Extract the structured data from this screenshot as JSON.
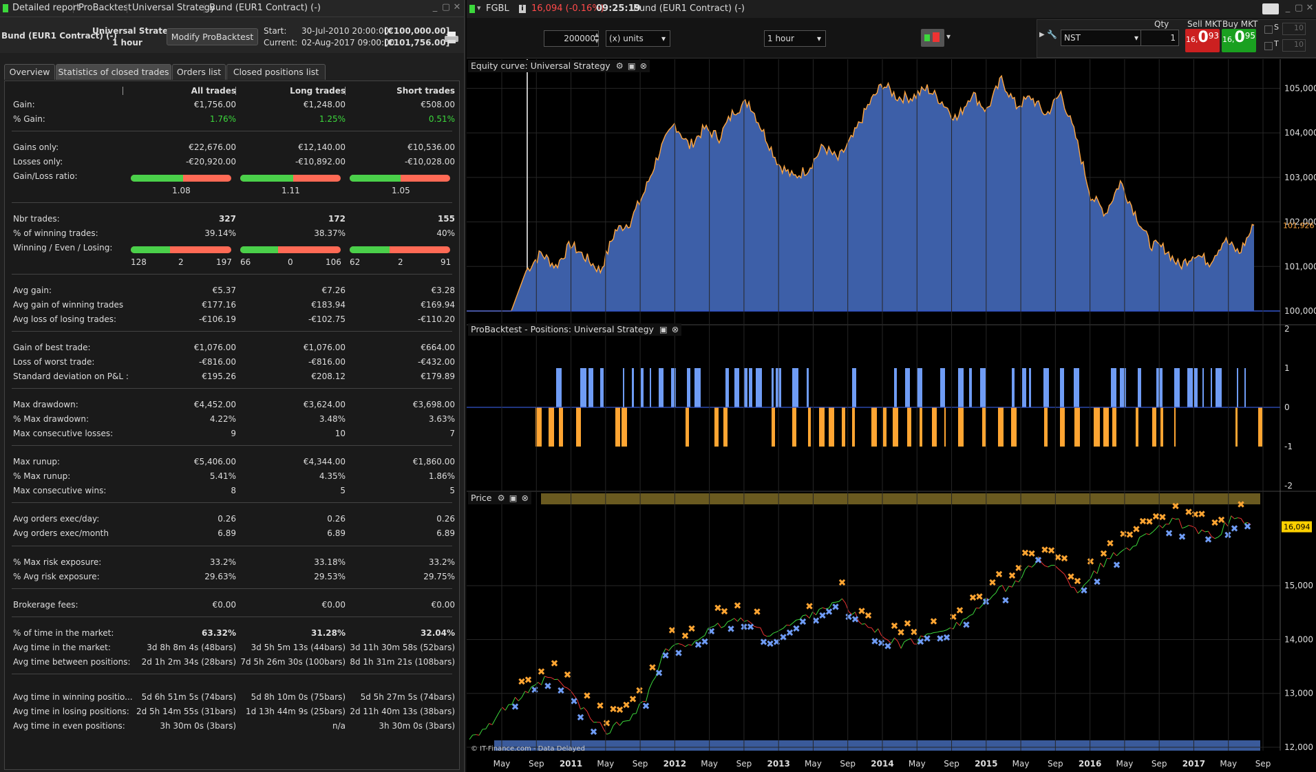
{
  "left_window": {
    "title": "Detailed report",
    "breadcrumb": [
      "ProBacktest",
      "Universal Strategy",
      "Bund (EUR1 Contract) (-)"
    ],
    "instrument": "Bund (EUR1 Contract) (-)",
    "strategy": "Universal Strategy",
    "timeframe": "1 hour",
    "modify_button": "Modify ProBacktest",
    "start_label": "Start:",
    "start_value": "30-Jul-2010 20:00:00",
    "start_capital": "[€100,000.00]",
    "current_label": "Current:",
    "current_value": "02-Aug-2017 09:00:00",
    "current_capital": "[€101,756.00]"
  },
  "tabs": [
    "Overview",
    "Statistics of closed trades",
    "Orders list",
    "Closed positions list"
  ],
  "columns": [
    "All trades",
    "Long trades",
    "Short trades"
  ],
  "stats": {
    "gain": [
      "Gain:",
      "€1,756.00",
      "€1,248.00",
      "€508.00"
    ],
    "pct_gain": [
      "% Gain:",
      "1.76%",
      "1.25%",
      "0.51%"
    ],
    "gains_only": [
      "Gains only:",
      "€22,676.00",
      "€12,140.00",
      "€10,536.00"
    ],
    "losses_only": [
      "Losses only:",
      "-€20,920.00",
      "-€10,892.00",
      "-€10,028.00"
    ],
    "gl_ratio_label": "Gain/Loss ratio:",
    "gl_ratio": [
      "1.08",
      "1.11",
      "1.05"
    ],
    "nbr_trades": [
      "Nbr trades:",
      "327",
      "172",
      "155"
    ],
    "pct_winning": [
      "% of winning trades:",
      "39.14%",
      "38.37%",
      "40%"
    ],
    "wel_label": "Winning / Even / Losing:",
    "wel": [
      [
        "128",
        "2",
        "197"
      ],
      [
        "66",
        "0",
        "106"
      ],
      [
        "62",
        "2",
        "91"
      ]
    ],
    "avg_gain": [
      "Avg gain:",
      "€5.37",
      "€7.26",
      "€3.28"
    ],
    "avg_gain_win": [
      "Avg gain of winning trades",
      "€177.16",
      "€183.94",
      "€169.94"
    ],
    "avg_loss_los": [
      "Avg loss of losing trades:",
      "-€106.19",
      "-€102.75",
      "-€110.20"
    ],
    "best_trade": [
      "Gain of best trade:",
      "€1,076.00",
      "€1,076.00",
      "€664.00"
    ],
    "worst_trade": [
      "Loss of worst trade:",
      "-€816.00",
      "-€816.00",
      "-€432.00"
    ],
    "std_dev": [
      "Standard deviation on P&L :",
      "€195.26",
      "€208.12",
      "€179.89"
    ],
    "max_dd": [
      "Max drawdown:",
      "€4,452.00",
      "€3,624.00",
      "€3,698.00"
    ],
    "pct_max_dd": [
      "% Max drawdown:",
      "4.22%",
      "3.48%",
      "3.63%"
    ],
    "max_consec_losses": [
      "Max consecutive losses:",
      "9",
      "10",
      "7"
    ],
    "max_runup": [
      "Max runup:",
      "€5,406.00",
      "€4,344.00",
      "€1,860.00"
    ],
    "pct_max_runup": [
      "% Max runup:",
      "5.41%",
      "4.35%",
      "1.86%"
    ],
    "max_consec_wins": [
      "Max consecutive wins:",
      "8",
      "5",
      "5"
    ],
    "orders_day": [
      "Avg orders exec/day:",
      "0.26",
      "0.26",
      "0.26"
    ],
    "orders_month": [
      "Avg orders exec/month",
      "6.89",
      "6.89",
      "6.89"
    ],
    "max_risk": [
      "% Max risk exposure:",
      "33.2%",
      "33.18%",
      "33.2%"
    ],
    "avg_risk": [
      "% Avg risk exposure:",
      "29.63%",
      "29.53%",
      "29.75%"
    ],
    "fees": [
      "Brokerage fees:",
      "€0.00",
      "€0.00",
      "€0.00"
    ],
    "time_market_pct": [
      "% of time in the market:",
      "63.32%",
      "31.28%",
      "32.04%"
    ],
    "avg_time_market": [
      "Avg time in the market:",
      "3d 8h 8m 4s (48bars)",
      "3d 5h 5m 13s (44bars)",
      "3d 11h 30m 58s (52bars)"
    ],
    "avg_time_between": [
      "Avg time between positions:",
      "2d 1h 2m 34s (28bars)",
      "7d 5h 26m 30s (100bars)",
      "8d 1h 31m 21s (108bars)"
    ],
    "avg_time_win": [
      "Avg time in winning positio...",
      "5d 6h 51m 5s (74bars)",
      "5d 8h 10m 0s (75bars)",
      "5d 5h 27m 5s (74bars)"
    ],
    "avg_time_los": [
      "Avg time in losing positions:",
      "2d 5h 14m 55s (31bars)",
      "1d 13h 44m 9s (25bars)",
      "2d 11h 40m 13s (38bars)"
    ],
    "avg_time_even": [
      "Avg time in even positions:",
      "3h 30m 0s (3bars)",
      "n/a",
      "3h 30m 0s (3bars)"
    ]
  },
  "right_window": {
    "ticker": "FGBL",
    "price_change": "16,094 (-0.16%)",
    "time": "09:25:19",
    "instrument": "Bund (EUR1 Contract) (-)",
    "units_value": "200000",
    "units_label": "(x) units",
    "timeframe": "1 hour",
    "qty_label": "Qty",
    "qty_value": "1",
    "account": "NST",
    "sell_label": "Sell MKT",
    "sell_price_small": "16,",
    "sell_price_big": "0",
    "sell_price_sup": "93",
    "buy_label": "Buy MKT",
    "buy_price_small": "16,",
    "buy_price_big": "0",
    "buy_price_sup": "95",
    "s_label": "S",
    "t_label": "T",
    "s_value": "10",
    "t_value": "10"
  },
  "panels": {
    "equity_title": "Equity curve: Universal Strategy",
    "positions_title": "ProBacktest - Positions: Universal Strategy",
    "price_title": "Price",
    "copyright": "© IT-Finance.com - Data Delayed",
    "current_equity_label": "101,926",
    "current_price_label": "16,094"
  },
  "chart_data": [
    {
      "type": "area",
      "name": "Equity curve: Universal Strategy",
      "y_ticks": [
        "105,000",
        "104,000",
        "103,000",
        "102,000",
        "101,000",
        "100,000"
      ],
      "ylim": [
        100000,
        105500
      ],
      "values": [
        100000,
        100000,
        100000,
        100000,
        100900,
        101300,
        101000,
        101500,
        101200,
        100900,
        101800,
        102000,
        102700,
        103600,
        104200,
        103700,
        104100,
        103900,
        104500,
        104700,
        104000,
        103300,
        103000,
        103200,
        103700,
        103400,
        103900,
        104600,
        105100,
        104800,
        104800,
        105000,
        104700,
        104300,
        104900,
        104500,
        105200,
        104600,
        104800,
        104400,
        104900,
        103900,
        102600,
        102200,
        102900,
        102200,
        101500,
        101400,
        101000,
        101300,
        101100,
        101600,
        101300,
        101926
      ]
    },
    {
      "type": "bar",
      "name": "ProBacktest - Positions: Universal Strategy",
      "y_ticks": [
        "2",
        "1",
        "0",
        "-1",
        "-2"
      ],
      "ylim": [
        -2,
        2
      ],
      "series": [
        {
          "name": "Long",
          "values": [
            1
          ]
        },
        {
          "name": "Short",
          "values": [
            -1
          ]
        }
      ]
    },
    {
      "type": "line",
      "name": "Price",
      "y_ticks": [
        "15,000",
        "14,000",
        "13,000",
        "12,000"
      ],
      "ylim": [
        12000,
        16600
      ],
      "values": [
        12200,
        12400,
        12800,
        13000,
        13300,
        13100,
        12600,
        12300,
        12500,
        12900,
        13800,
        13900,
        14100,
        14300,
        14400,
        14100,
        14200,
        14400,
        14600,
        14700,
        14300,
        14100,
        13900,
        14000,
        14200,
        14300,
        14600,
        14900,
        15100,
        15500,
        15300,
        14900,
        15300,
        15600,
        15800,
        16100,
        16200,
        16000,
        15900,
        16300,
        16094
      ]
    }
  ],
  "x_axis": [
    "May",
    "Sep",
    "2011",
    "May",
    "Sep",
    "2012",
    "May",
    "Sep",
    "2013",
    "May",
    "Sep",
    "2014",
    "May",
    "Sep",
    "2015",
    "May",
    "Sep",
    "2016",
    "May",
    "Sep",
    "2017",
    "May",
    "Sep"
  ],
  "colors": {
    "equity_fill": "#3d5fa8",
    "equity_line": "#ffa640",
    "long": "#6f9cf5",
    "short": "#ffa532",
    "green": "#3cd83c"
  }
}
